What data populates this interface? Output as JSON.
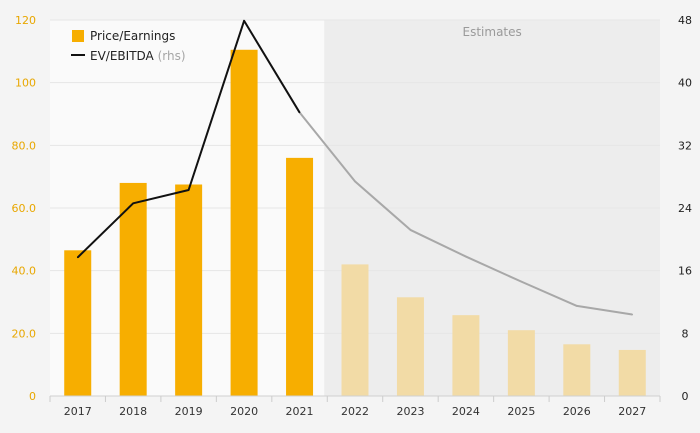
{
  "chart_data": {
    "type": "bar",
    "categories": [
      "2017",
      "2018",
      "2019",
      "2020",
      "2021",
      "2022",
      "2023",
      "2024",
      "2025",
      "2026",
      "2027"
    ],
    "series": [
      {
        "name": "Price/Earnings",
        "kind": "bar",
        "axis": "left",
        "values": [
          46.5,
          68,
          67.5,
          110.5,
          76,
          42,
          31.5,
          25.8,
          21,
          16.5,
          14.7
        ]
      },
      {
        "name": "EV/EBITDA",
        "name_suffix": "(rhs)",
        "kind": "line",
        "axis": "right",
        "values": [
          17.7,
          24.6,
          26.3,
          47.9,
          36.2,
          27.4,
          21.2,
          17.8,
          14.6,
          11.5,
          10.4
        ]
      }
    ],
    "estimates_from": "2022",
    "estimates_label": "Estimates",
    "y_left": {
      "min": 0,
      "max": 120,
      "ticks": [
        "0",
        "20.0",
        "40.0",
        "60.0",
        "80.0",
        "100",
        "120"
      ]
    },
    "y_right": {
      "min": 0,
      "max": 48,
      "ticks": [
        "0",
        "8",
        "16",
        "24",
        "32",
        "40",
        "48"
      ]
    },
    "legend_placement": "top-left",
    "grid": true,
    "colors": {
      "bar_actual": "#f7ae00",
      "bar_estimate": "#f2dba6",
      "line_actual": "#111111",
      "line_estimate": "#a8a8a8",
      "estimates_band": "#ededed",
      "plot_bg": "#fafafa",
      "grid": "#e6e6e6"
    }
  }
}
